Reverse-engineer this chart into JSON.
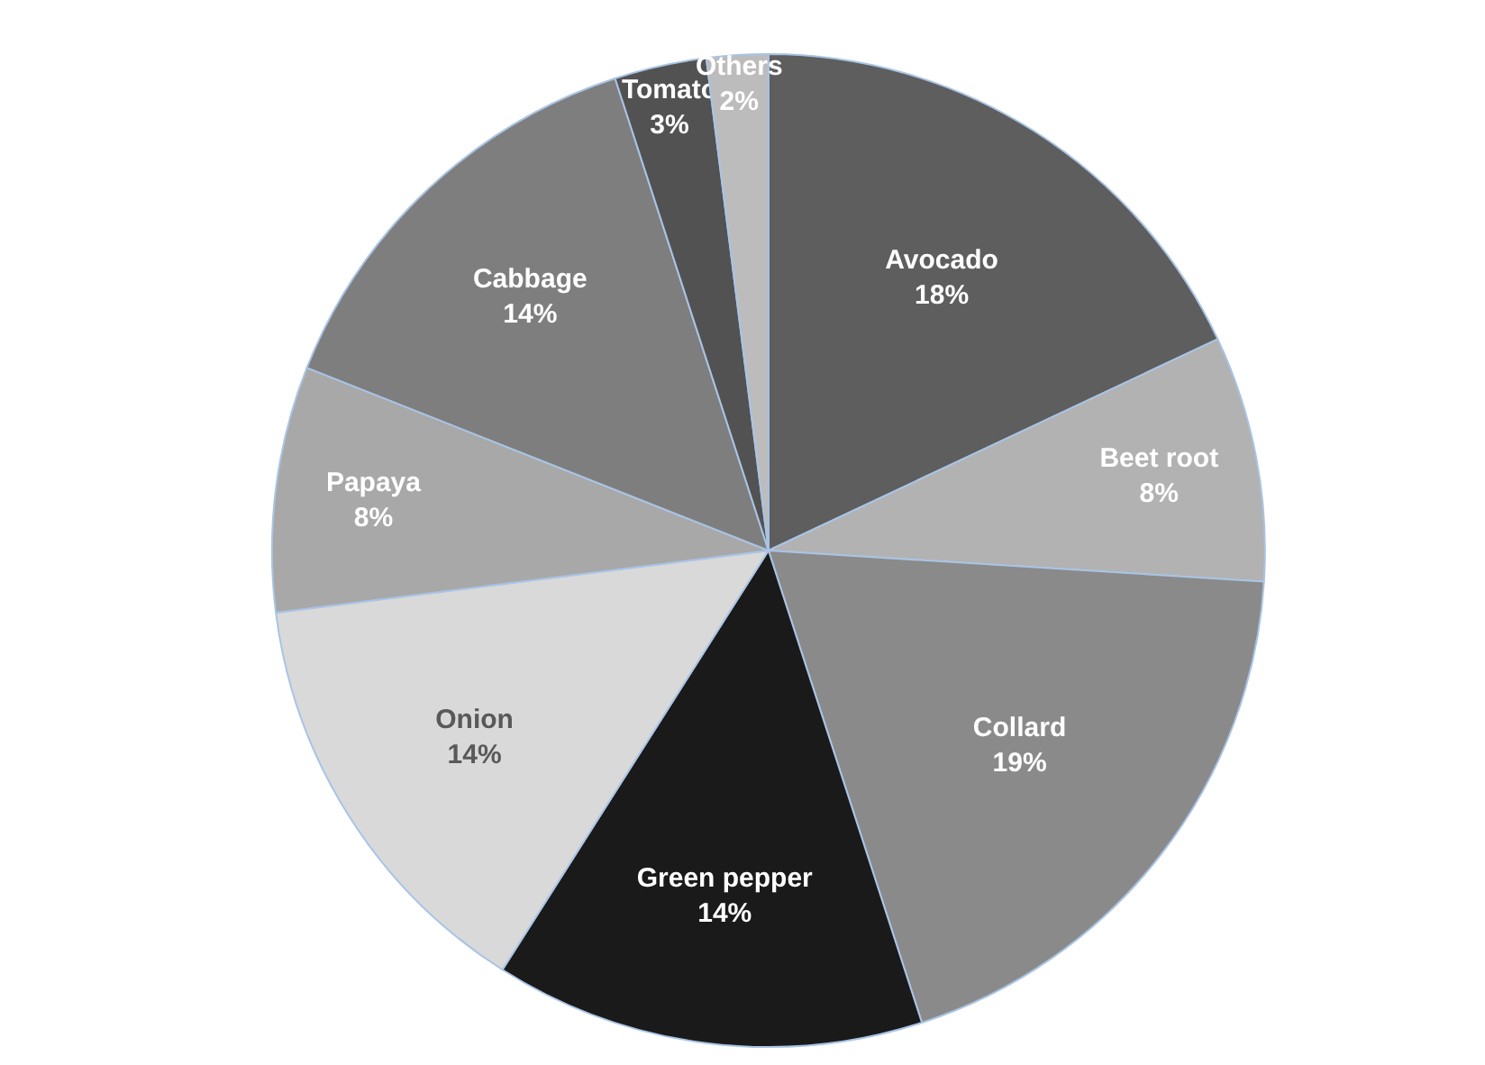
{
  "chart_data": {
    "type": "pie",
    "categories": [
      "Avocado",
      "Beet root",
      "Collard",
      "Green pepper",
      "Onion",
      "Papaya",
      "Cabbage",
      "Tomato",
      "Others"
    ],
    "values": [
      18,
      8,
      19,
      14,
      14,
      8,
      14,
      3,
      2
    ],
    "colors": [
      "#5e5e5e",
      "#b2b2b2",
      "#8a8a8a",
      "#1a1a1a",
      "#d9d9d9",
      "#a8a8a8",
      "#7e7e7e",
      "#525252",
      "#bcbcbc"
    ],
    "value_labels": [
      "18%",
      "8%",
      "19%",
      "14%",
      "14%",
      "8%",
      "14%",
      "3%",
      "2%"
    ]
  }
}
